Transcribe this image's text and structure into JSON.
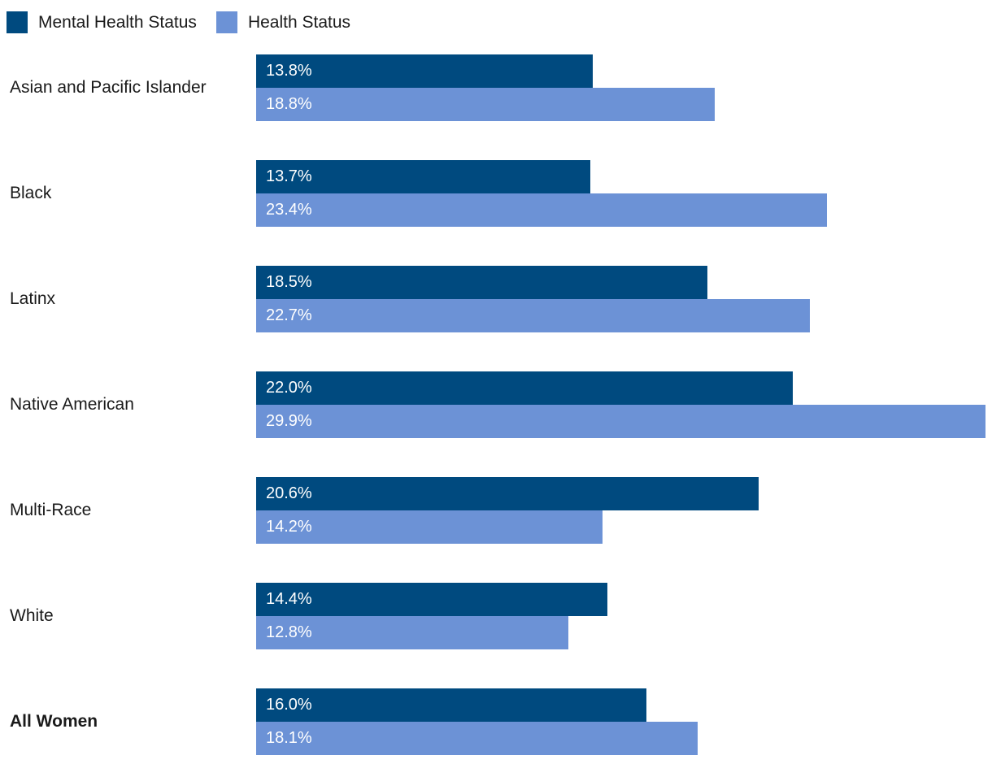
{
  "legend": {
    "items": [
      {
        "label": "Mental Health Status",
        "color": "#004a7f"
      },
      {
        "label": "Health Status",
        "color": "#6c92d6"
      }
    ],
    "position": "top-left"
  },
  "chart_data": {
    "type": "bar",
    "orientation": "horizontal",
    "title": "",
    "xlabel": "",
    "ylabel": "",
    "grid": false,
    "axes_visible": false,
    "value_labels_inside_bars": true,
    "value_suffix": "%",
    "xlim": [
      0,
      29.9
    ],
    "categories": [
      "Asian and Pacific Islander",
      "Black",
      "Latinx",
      "Native American",
      "Multi-Race",
      "White",
      "All Women"
    ],
    "emphasized_category": "All Women",
    "series": [
      {
        "name": "Mental Health Status",
        "color": "#004a7f",
        "values": [
          13.8,
          13.7,
          18.5,
          22.0,
          20.6,
          14.4,
          16.0
        ]
      },
      {
        "name": "Health Status",
        "color": "#6c92d6",
        "values": [
          18.8,
          23.4,
          22.7,
          29.9,
          14.2,
          12.8,
          18.1
        ]
      }
    ]
  },
  "colors": {
    "background": "#ffffff",
    "label_text": "#1a1a1a",
    "bar_value_text": "#ffffff"
  }
}
